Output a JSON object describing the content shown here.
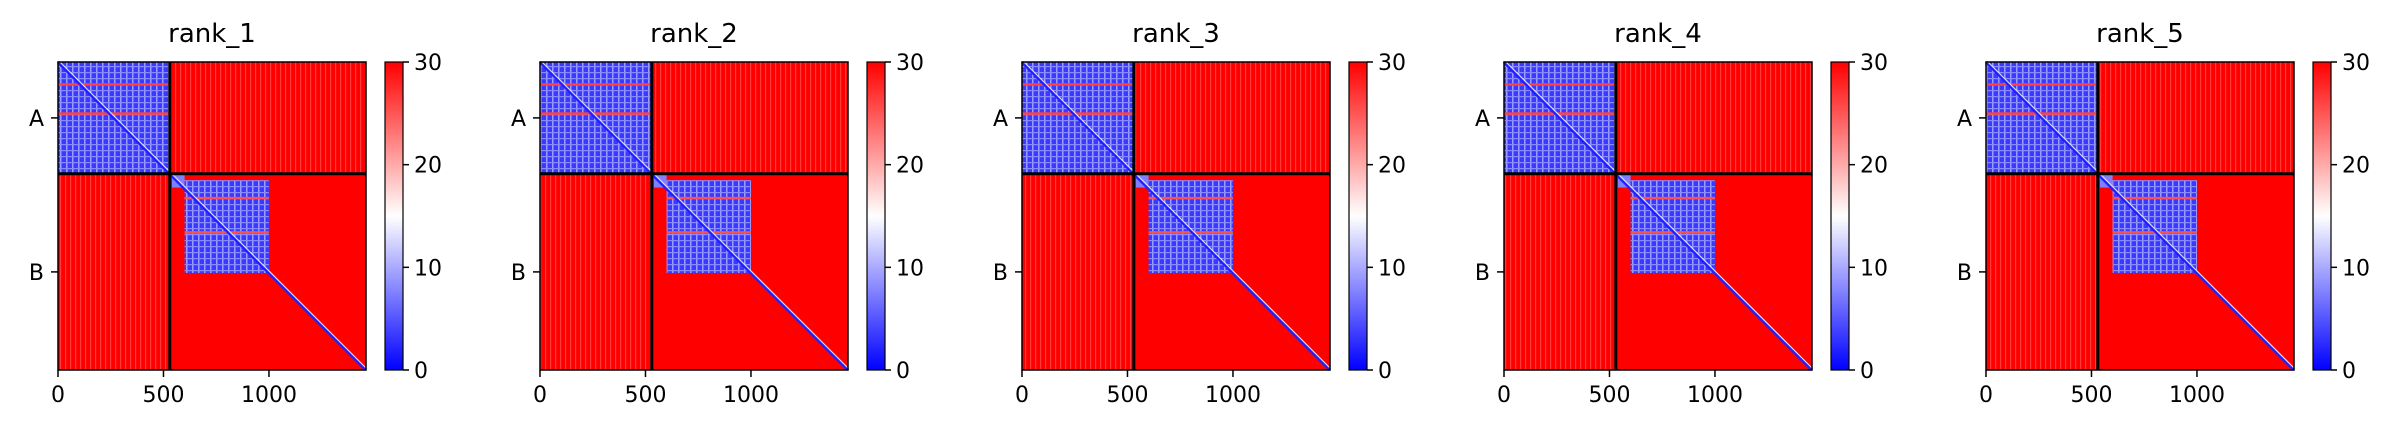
{
  "chart_data": {
    "type": "heatmap",
    "figure_description_free": true,
    "colormap": {
      "name": "bwr",
      "stops": [
        "#0000ff",
        "#ffffff",
        "#ff0000"
      ],
      "vmin": 0,
      "vmax": 30,
      "colorbar_ticks": [
        "0",
        "10",
        "20",
        "30"
      ],
      "colorbar_tick_values": [
        0,
        10,
        20,
        30
      ]
    },
    "axis": {
      "xlim": [
        0,
        1460
      ],
      "ylim": [
        0,
        1460
      ],
      "x_ticks": [
        "0",
        "500",
        "1000"
      ],
      "x_tick_values": [
        0,
        500,
        1000
      ],
      "chain_boundary": 530,
      "y_chain_labels": [
        "A",
        "B"
      ],
      "y_chain_label_values": [
        265,
        995
      ]
    },
    "panels": [
      {
        "title": "rank_1"
      },
      {
        "title": "rank_2"
      },
      {
        "title": "rank_3"
      },
      {
        "title": "rank_4"
      },
      {
        "title": "rank_5"
      }
    ],
    "regions": {
      "chain_a_low_error": [
        0,
        530
      ],
      "chain_b_low_error_core": [
        600,
        1000
      ]
    }
  }
}
